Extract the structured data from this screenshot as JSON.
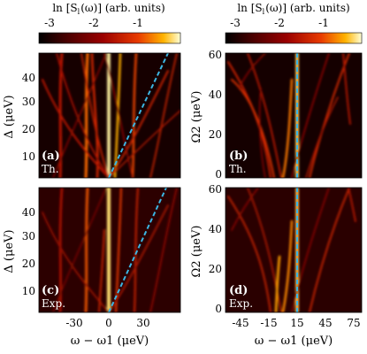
{
  "figure": {
    "colorbar_left": {
      "label": "ln [S_l(ω)] (arb. units)",
      "label_main": "ln [S",
      "label_sub": "l",
      "label_rest": "(ω)] (arb. units)",
      "ticks": [
        "-3",
        "-2",
        "-1"
      ]
    },
    "colorbar_right": {
      "label": "ln [S_l(ω)] (arb. units)",
      "label_main": "ln [S",
      "label_sub": "l",
      "label_rest": "(ω)] (arb. units)",
      "ticks": [
        "-3",
        "-2",
        "-1"
      ]
    },
    "colormap": [
      "#000000",
      "#4a0000",
      "#9a0000",
      "#e83a00",
      "#ffb300",
      "#ffffd8"
    ],
    "dashed_line_color": "#3cb6e3",
    "panels": [
      {
        "id": "a",
        "tag": "(a)",
        "source": "Th."
      },
      {
        "id": "b",
        "tag": "(b)",
        "source": "Th."
      },
      {
        "id": "c",
        "tag": "(c)",
        "source": "Exp."
      },
      {
        "id": "d",
        "tag": "(d)",
        "source": "Exp."
      }
    ],
    "left_column": {
      "ylabel": "Δ (μeV)",
      "xlabel": "ω − ω1 (μeV)",
      "yticks": [
        "10",
        "20",
        "30",
        "40"
      ],
      "xticks": [
        "-30",
        "0",
        "30"
      ]
    },
    "right_column": {
      "ylabel": "Ω2 (μeV)",
      "xlabel": "ω − ω1 (μeV)",
      "yticks": [
        "0",
        "20",
        "40",
        "60"
      ],
      "xticks": [
        "-45",
        "-15",
        "15",
        "45",
        "75"
      ]
    }
  },
  "chart_data": [
    {
      "type": "heatmap",
      "panel": "a",
      "xlabel": "ω − ω1 (μeV)",
      "ylabel": "Δ (μeV)",
      "xlim": [
        -55,
        55
      ],
      "ylim": [
        0,
        48
      ],
      "colorbar_ticks": [
        -3,
        -2,
        -1
      ],
      "overlay_line": {
        "style": "dashed",
        "from": [
          0,
          0
        ],
        "to": [
          50,
          48
        ]
      }
    },
    {
      "type": "heatmap",
      "panel": "b",
      "xlabel": "ω − ω1 (μeV)",
      "ylabel": "Ω2 (μeV)",
      "xlim": [
        -55,
        90
      ],
      "ylim": [
        0,
        60
      ],
      "colorbar_ticks": [
        -3,
        -2,
        -1
      ],
      "overlay_line": {
        "style": "dashed",
        "x": 15
      }
    },
    {
      "type": "heatmap",
      "panel": "c",
      "xlabel": "ω − ω1 (μeV)",
      "ylabel": "Δ (μeV)",
      "xlim": [
        -55,
        55
      ],
      "ylim": [
        0,
        48
      ],
      "colorbar_ticks": [
        -3,
        -2,
        -1
      ],
      "overlay_line": {
        "style": "dashed",
        "from": [
          0,
          0
        ],
        "to": [
          50,
          48
        ]
      }
    },
    {
      "type": "heatmap",
      "panel": "d",
      "xlabel": "ω − ω1 (μeV)",
      "ylabel": "Ω2 (μeV)",
      "xlim": [
        -55,
        90
      ],
      "ylim": [
        0,
        60
      ],
      "colorbar_ticks": [
        -3,
        -2,
        -1
      ],
      "overlay_line": {
        "style": "dashed",
        "x": 15
      }
    }
  ]
}
